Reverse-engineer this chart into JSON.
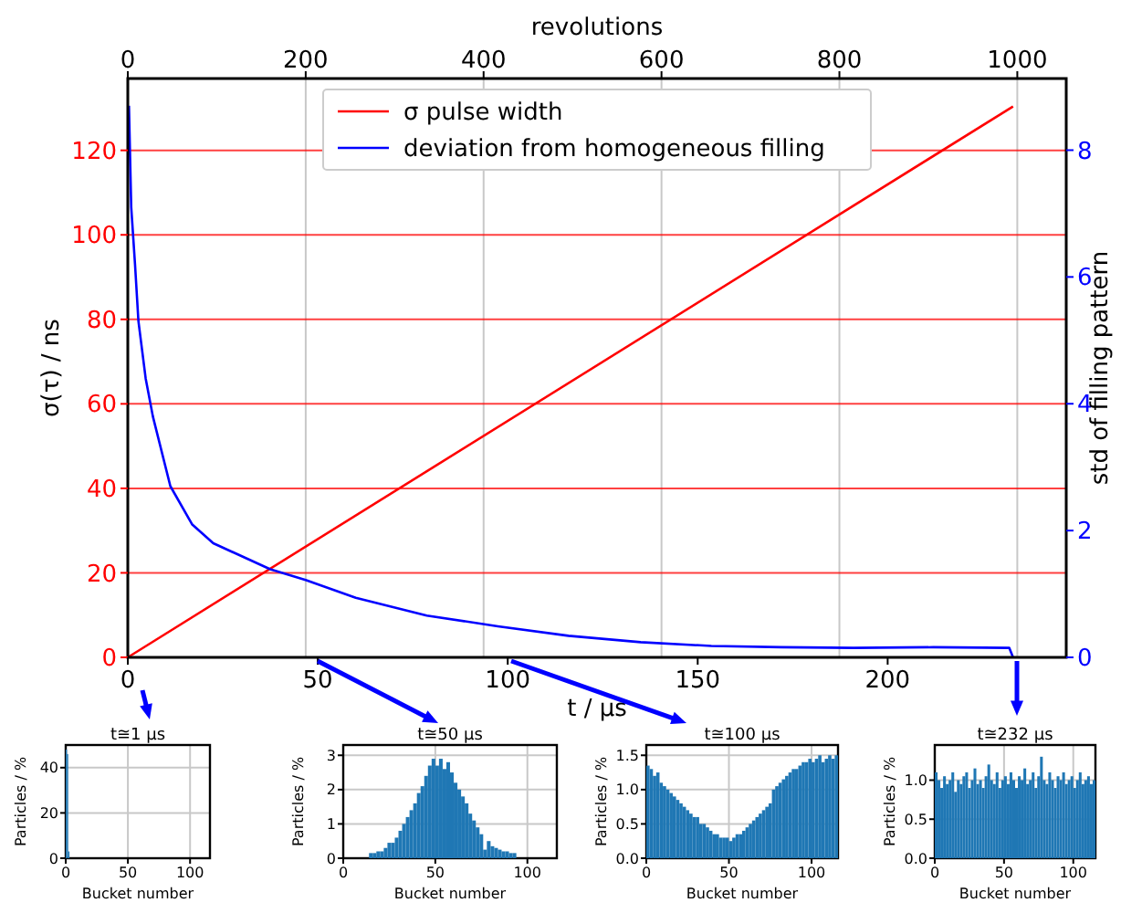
{
  "chart_data": [
    {
      "type": "line",
      "xlabel": "t / µs",
      "ylabel": "σ(τ) / ns",
      "y2label": "std of filling pattern",
      "x2label": "revolutions",
      "xlim": [
        0,
        247
      ],
      "xticks": [
        0,
        50,
        100,
        150,
        200
      ],
      "x2lim": [
        0,
        1055
      ],
      "x2ticks": [
        0,
        200,
        400,
        600,
        800,
        1000
      ],
      "ylim": [
        0,
        137
      ],
      "yticks": [
        0,
        20,
        40,
        60,
        80,
        100,
        120
      ],
      "y2lim": [
        0,
        9.13
      ],
      "y2ticks": [
        0,
        2,
        4,
        6,
        8
      ],
      "grid": true,
      "legend": "top",
      "series": [
        {
          "name": "σ pulse width",
          "color": "#ff0000",
          "x": [
            0,
            233
          ],
          "values": [
            0,
            130.4
          ]
        },
        {
          "name": "deviation from homogeneous filling",
          "color": "#0000ff",
          "axis": "y2",
          "x": [
            0.3,
            0.9,
            1.9,
            2.8,
            4.7,
            6.6,
            11.2,
            16.9,
            22.5,
            37.5,
            46.8,
            60,
            78.7,
            97.4,
            116,
            135,
            153.6,
            172,
            191,
            212,
            232,
            233
          ],
          "values": [
            8.7,
            7.1,
            6.2,
            5.3,
            4.4,
            3.8,
            2.7,
            2.1,
            1.8,
            1.39,
            1.22,
            0.94,
            0.66,
            0.49,
            0.34,
            0.24,
            0.18,
            0.16,
            0.15,
            0.16,
            0.15,
            0
          ]
        }
      ]
    },
    {
      "type": "histogram",
      "title": "t≅1 µs",
      "xlabel": "Bucket number",
      "ylabel": "Particles / %",
      "xlim": [
        0,
        116
      ],
      "xticks": [
        0,
        50,
        100
      ],
      "ylim": [
        0,
        50
      ],
      "yticks": [
        0,
        20,
        40
      ],
      "grid": true,
      "color": "#1f77b4",
      "bins": [
        0,
        1,
        2,
        3
      ],
      "values": [
        48,
        46,
        3
      ]
    },
    {
      "type": "histogram",
      "title": "t≅50 µs",
      "xlabel": "Bucket number",
      "ylabel": "Particles / %",
      "xlim": [
        0,
        116
      ],
      "xticks": [
        0,
        50,
        100
      ],
      "ylim": [
        0,
        3.3
      ],
      "yticks": [
        0,
        1,
        2,
        3
      ],
      "grid": true,
      "color": "#1f77b4",
      "bins": [
        14,
        16,
        18,
        20,
        22,
        24,
        26,
        28,
        30,
        32,
        34,
        36,
        38,
        40,
        42,
        44,
        46,
        48,
        50,
        52,
        54,
        56,
        58,
        60,
        62,
        64,
        66,
        68,
        70,
        72,
        74,
        76,
        78,
        80,
        82,
        84,
        86,
        88,
        90,
        92,
        94
      ],
      "values": [
        0.15,
        0.15,
        0.2,
        0.2,
        0.3,
        0.45,
        0.45,
        0.6,
        0.8,
        1.0,
        1.2,
        1.4,
        1.6,
        1.9,
        2.1,
        2.4,
        2.7,
        2.9,
        2.7,
        2.9,
        2.6,
        2.8,
        2.5,
        2.2,
        2.0,
        1.8,
        1.6,
        1.3,
        1.1,
        0.9,
        0.7,
        0.25,
        0.5,
        0.35,
        0.3,
        0.25,
        0.2,
        0.2,
        0.15,
        0.15
      ]
    },
    {
      "type": "histogram",
      "title": "t≅100 µs",
      "xlabel": "Bucket number",
      "ylabel": "Particles / %",
      "xlim": [
        0,
        116
      ],
      "xticks": [
        0,
        50,
        100
      ],
      "ylim": [
        0,
        1.65
      ],
      "yticks": [
        {
          "value": 0,
          "label": "0.0"
        },
        {
          "value": 0.5,
          "label": "0.5"
        },
        {
          "value": 1,
          "label": "1.0"
        },
        {
          "value": 1.5,
          "label": "1.5"
        }
      ],
      "grid": true,
      "color": "#1f77b4",
      "bins": [
        0,
        2,
        4,
        6,
        8,
        10,
        12,
        14,
        16,
        18,
        20,
        22,
        24,
        26,
        28,
        30,
        32,
        34,
        36,
        38,
        40,
        42,
        44,
        46,
        48,
        50,
        52,
        54,
        56,
        58,
        60,
        62,
        64,
        66,
        68,
        70,
        72,
        74,
        76,
        78,
        80,
        82,
        84,
        86,
        88,
        90,
        92,
        94,
        96,
        98,
        100,
        102,
        104,
        106,
        108,
        110,
        112,
        114,
        116
      ],
      "values": [
        1.35,
        1.3,
        1.2,
        1.25,
        1.1,
        1.05,
        1.0,
        0.95,
        0.9,
        0.85,
        0.8,
        0.75,
        0.7,
        0.65,
        0.6,
        0.6,
        0.5,
        0.5,
        0.45,
        0.4,
        0.35,
        0.35,
        0.3,
        0.3,
        0.3,
        0.25,
        0.3,
        0.35,
        0.35,
        0.4,
        0.45,
        0.5,
        0.55,
        0.6,
        0.65,
        0.7,
        0.75,
        0.8,
        1.0,
        1.05,
        1.1,
        1.15,
        1.2,
        1.25,
        1.3,
        1.3,
        1.35,
        1.4,
        1.4,
        1.45,
        1.4,
        1.45,
        1.5,
        1.4,
        1.45,
        1.5,
        1.45,
        1.5
      ]
    },
    {
      "type": "histogram",
      "title": "t≅232 µs",
      "xlabel": "Bucket number",
      "ylabel": "Particles / %",
      "xlim": [
        0,
        116
      ],
      "xticks": [
        0,
        50,
        100
      ],
      "ylim": [
        0,
        1.45
      ],
      "yticks": [
        {
          "value": 0,
          "label": "0.0"
        },
        {
          "value": 0.5,
          "label": "0.5"
        },
        {
          "value": 1,
          "label": "1.0"
        }
      ],
      "grid": true,
      "color": "#1f77b4",
      "bins": [
        0,
        2,
        4,
        6,
        8,
        10,
        12,
        14,
        16,
        18,
        20,
        22,
        24,
        26,
        28,
        30,
        32,
        34,
        36,
        38,
        40,
        42,
        44,
        46,
        48,
        50,
        52,
        54,
        56,
        58,
        60,
        62,
        64,
        66,
        68,
        70,
        72,
        74,
        76,
        78,
        80,
        82,
        84,
        86,
        88,
        90,
        92,
        94,
        96,
        98,
        100,
        102,
        104,
        106,
        108,
        110,
        112,
        114,
        116
      ],
      "values": [
        1.1,
        1.0,
        0.9,
        1.05,
        0.95,
        1.0,
        1.1,
        0.85,
        1.0,
        0.95,
        1.05,
        1.1,
        0.9,
        1.0,
        1.15,
        0.95,
        1.0,
        0.9,
        1.05,
        1.2,
        1.0,
        0.95,
        1.1,
        0.9,
        1.0,
        1.05,
        0.95,
        1.1,
        1.0,
        0.9,
        1.05,
        1.0,
        1.15,
        0.95,
        1.0,
        1.1,
        0.9,
        1.05,
        1.3,
        1.0,
        0.95,
        1.1,
        1.0,
        0.9,
        1.05,
        1.0,
        1.1,
        0.95,
        1.0,
        1.05,
        0.9,
        1.0,
        1.1,
        0.95,
        1.0,
        1.05,
        0.95,
        1.0
      ]
    }
  ]
}
